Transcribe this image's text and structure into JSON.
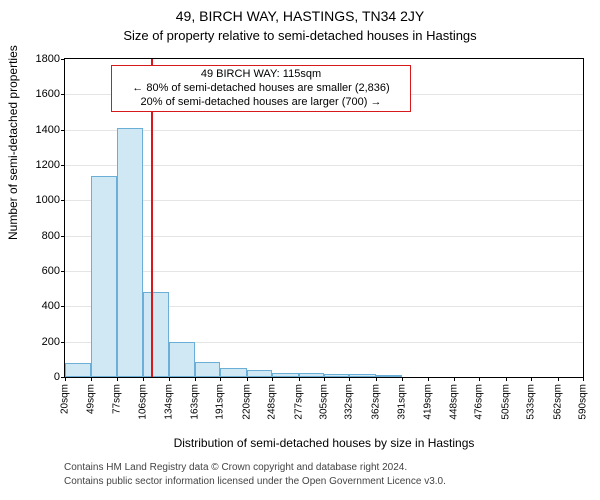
{
  "title": "49, BIRCH WAY, HASTINGS, TN34 2JY",
  "subtitle": "Size of property relative to semi-detached houses in Hastings",
  "ylabel": "Number of semi-detached properties",
  "xlabel": "Distribution of semi-detached houses by size in Hastings",
  "foot1": "Contains HM Land Registry data © Crown copyright and database right 2024.",
  "foot2": "Contains public sector information licensed under the Open Government Licence v3.0.",
  "annot": {
    "l1": "49 BIRCH WAY: 115sqm",
    "l2": "← 80% of semi-detached houses are smaller (2,836)",
    "l3": "20% of semi-detached houses are larger (700) →"
  },
  "chart": {
    "type": "histogram",
    "ylim": [
      0,
      1800
    ],
    "ytick_step": 200,
    "xlim_labels": [
      20,
      590
    ],
    "xtick_values": [
      20,
      49,
      77,
      106,
      134,
      163,
      191,
      220,
      248,
      277,
      305,
      332,
      362,
      391,
      419,
      448,
      476,
      505,
      533,
      562,
      590
    ],
    "xtick_suffix": "sqm",
    "bar_values": [
      80,
      1140,
      1410,
      480,
      200,
      85,
      50,
      40,
      25,
      20,
      18,
      15,
      12,
      0,
      0,
      0,
      0,
      0,
      0,
      0,
      0
    ],
    "bar_fill": "#cfe8f3",
    "bar_stroke": "#6baed6",
    "marker_value": 115,
    "marker_color": "#d7191c",
    "annot_border": "#d7191c",
    "background_color": "#ffffff",
    "grid_color": "#e5e5e5",
    "plot_border_color": "#000000",
    "tick_fontsize": 10,
    "label_fontsize": 12,
    "title_fontsize": 14
  }
}
